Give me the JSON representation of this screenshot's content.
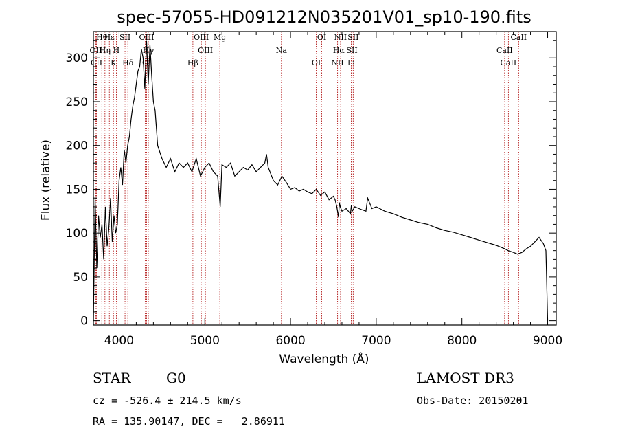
{
  "chart_data": {
    "type": "line",
    "title": "spec-57055-HD091212N035201V01_sp10-190.fits",
    "xlabel": "Wavelength (Å)",
    "ylabel": "Flux (relative)",
    "xlim": [
      3700,
      9100
    ],
    "ylim": [
      -5,
      330
    ],
    "xticks": [
      4000,
      5000,
      6000,
      7000,
      8000,
      9000
    ],
    "yticks": [
      0,
      50,
      100,
      150,
      200,
      250,
      300
    ],
    "grid": false,
    "series": [
      {
        "name": "flux",
        "color": "#000000",
        "x": [
          3700,
          3720,
          3740,
          3760,
          3780,
          3800,
          3820,
          3840,
          3860,
          3880,
          3900,
          3920,
          3940,
          3960,
          3980,
          4000,
          4020,
          4040,
          4060,
          4080,
          4100,
          4120,
          4140,
          4160,
          4180,
          4200,
          4220,
          4240,
          4260,
          4280,
          4300,
          4320,
          4340,
          4360,
          4380,
          4400,
          4420,
          4450,
          4500,
          4550,
          4600,
          4650,
          4700,
          4750,
          4800,
          4850,
          4900,
          4950,
          5000,
          5050,
          5100,
          5150,
          5180,
          5200,
          5250,
          5300,
          5350,
          5400,
          5450,
          5500,
          5550,
          5600,
          5650,
          5700,
          5720,
          5740,
          5760,
          5800,
          5850,
          5900,
          5950,
          6000,
          6050,
          6100,
          6150,
          6200,
          6250,
          6300,
          6350,
          6400,
          6450,
          6500,
          6520,
          6540,
          6560,
          6570,
          6580,
          6600,
          6650,
          6700,
          6710,
          6720,
          6750,
          6800,
          6850,
          6880,
          6900,
          6950,
          7000,
          7100,
          7200,
          7300,
          7400,
          7500,
          7600,
          7700,
          7800,
          7900,
          8000,
          8100,
          8200,
          8300,
          8400,
          8500,
          8540,
          8600,
          8650,
          8700,
          8750,
          8800,
          8850,
          8900,
          8950,
          8980,
          9000
        ],
        "values": [
          0,
          140,
          60,
          120,
          95,
          110,
          70,
          130,
          85,
          105,
          140,
          90,
          120,
          100,
          110,
          160,
          175,
          155,
          195,
          180,
          200,
          210,
          230,
          245,
          255,
          270,
          285,
          290,
          310,
          300,
          265,
          320,
          270,
          315,
          280,
          250,
          240,
          200,
          185,
          175,
          185,
          170,
          180,
          175,
          180,
          170,
          185,
          165,
          175,
          180,
          170,
          165,
          130,
          178,
          175,
          180,
          165,
          170,
          175,
          172,
          178,
          170,
          175,
          180,
          190,
          175,
          170,
          160,
          155,
          165,
          158,
          150,
          152,
          148,
          150,
          147,
          145,
          150,
          143,
          147,
          138,
          142,
          138,
          130,
          118,
          135,
          130,
          125,
          128,
          122,
          132,
          125,
          130,
          128,
          126,
          125,
          140,
          128,
          130,
          125,
          122,
          118,
          115,
          112,
          110,
          106,
          103,
          101,
          98,
          95,
          92,
          89,
          86,
          82,
          80,
          78,
          76,
          78,
          82,
          85,
          90,
          95,
          88,
          80,
          0
        ]
      }
    ],
    "lines": [
      {
        "label": "Hθ",
        "x": 3798
      },
      {
        "label": "OII",
        "x": 3727
      },
      {
        "label": "CII",
        "x": 3736
      },
      {
        "label": "Hε",
        "x": 3886
      },
      {
        "label": "Hη",
        "x": 3835
      },
      {
        "label": "K",
        "x": 3934
      },
      {
        "label": "SII",
        "x": 4069
      },
      {
        "label": "H",
        "x": 3968
      },
      {
        "label": "Hδ",
        "x": 4102
      },
      {
        "label": "OIII",
        "x": 4321
      },
      {
        "label": "Hγ",
        "x": 4341
      },
      {
        "label": "G",
        "x": 4304
      },
      {
        "label": "OIII",
        "x": 4959
      },
      {
        "label": "OIII",
        "x": 5007
      },
      {
        "label": "Hβ",
        "x": 4861
      },
      {
        "label": "Mg",
        "x": 5175
      },
      {
        "label": "Na",
        "x": 5894
      },
      {
        "label": "OI",
        "x": 6300
      },
      {
        "label": "OI",
        "x": 6364
      },
      {
        "label": "Hα",
        "x": 6563
      },
      {
        "label": "NII",
        "x": 6548
      },
      {
        "label": "NII",
        "x": 6584
      },
      {
        "label": "SII",
        "x": 6717
      },
      {
        "label": "Li",
        "x": 6708
      },
      {
        "label": "SII",
        "x": 6731
      },
      {
        "label": "CaII",
        "x": 8498
      },
      {
        "label": "CaII",
        "x": 8542
      },
      {
        "label": "CaII",
        "x": 8662
      }
    ]
  },
  "info": {
    "class_label": "STAR",
    "subclass": "G0",
    "survey": "LAMOST DR3",
    "cz": "cz = -526.4 ± 214.5 km/s",
    "obs_date": "Obs-Date: 20150201",
    "radec": "RA = 135.90147, DEC =   2.86911"
  },
  "colors": {
    "line_marker": "#aa0000",
    "spectrum": "#000000"
  }
}
